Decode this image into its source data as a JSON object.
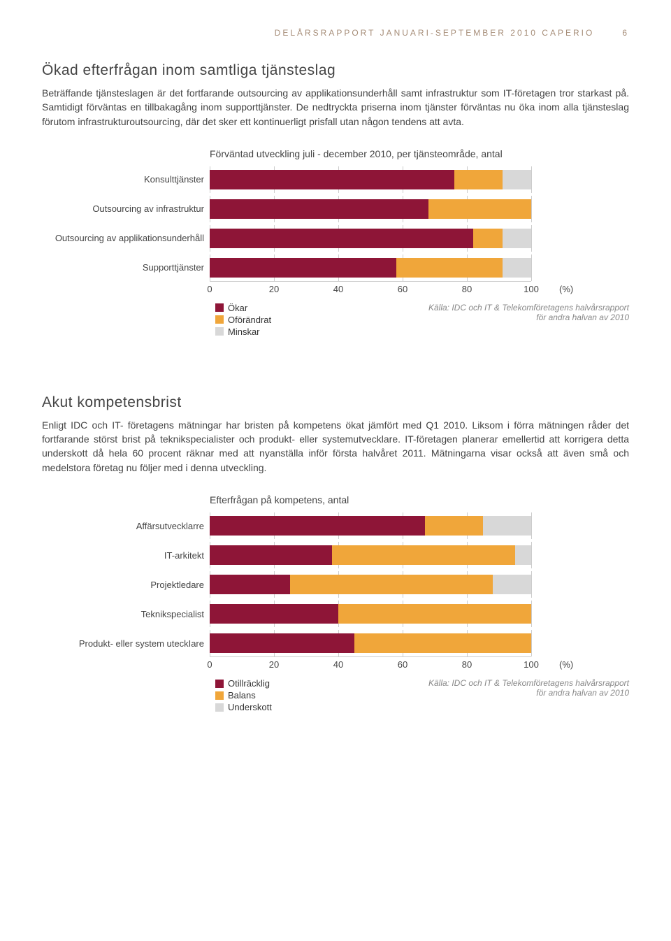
{
  "header": {
    "title": "DELÅRSRAPPORT JANUARI-SEPTEMBER 2010 CAPERIO",
    "page": "6"
  },
  "section1": {
    "title": "Ökad efterfrågan inom samtliga tjänsteslag",
    "body": "Beträffande tjänsteslagen är det fortfarande outsourcing av applikationsunderhåll samt infrastruktur som IT-företagen tror starkast på. Samtidigt förväntas en tillbakagång inom supporttjänster. De nedtryckta priserna inom tjänster förväntas nu öka inom alla tjänsteslag förutom infrastrukturoutsourcing, där det sker ett kontinuerligt prisfall utan någon tendens att avta."
  },
  "chart1": {
    "type": "stacked-bar",
    "title": "Förväntad utveckling juli - december 2010, per tjänsteområde, antal",
    "colors": {
      "okar": "#8e1537",
      "oforandrat": "#f0a63a",
      "minskar": "#d8d8d8",
      "grid": "#cccccc"
    },
    "series_labels": {
      "okar": "Ökar",
      "oforandrat": "Oförändrat",
      "minskar": "Minskar"
    },
    "xlim": [
      0,
      100
    ],
    "ticks": [
      0,
      20,
      40,
      60,
      80,
      100
    ],
    "unit": "(%)",
    "rows": [
      {
        "label": "Konsulttjänster",
        "okar": 76,
        "oforandrat": 15,
        "minskar": 9
      },
      {
        "label": "Outsourcing av infrastruktur",
        "okar": 68,
        "oforandrat": 32,
        "minskar": 0
      },
      {
        "label": "Outsourcing av applikationsunderhåll",
        "okar": 82,
        "oforandrat": 9,
        "minskar": 9
      },
      {
        "label": "Supporttjänster",
        "okar": 58,
        "oforandrat": 33,
        "minskar": 9
      }
    ],
    "source": "Källa: IDC och IT & Telekomföretagens halvårsrapport för andra halvan av 2010"
  },
  "section2": {
    "title": "Akut kompetensbrist",
    "body": "Enligt IDC och IT- företagens mätningar har bristen på kompetens ökat jämfört med Q1 2010. Liksom i förra mätningen råder det fortfarande störst brist på teknikspecialister och produkt- eller systemutvecklare. IT-företagen planerar emellertid att korrigera detta underskott då hela 60 procent räknar med att nyanställa inför första halvåret 2011. Mätningarna visar också att även små och medelstora företag nu följer med i denna utveckling."
  },
  "chart2": {
    "type": "stacked-bar",
    "title": "Efterfrågan på kompetens, antal",
    "colors": {
      "otillr": "#8e1537",
      "balans": "#f0a63a",
      "under": "#d8d8d8",
      "grid": "#cccccc"
    },
    "series_labels": {
      "otillr": "Otillräcklig",
      "balans": "Balans",
      "under": "Underskott"
    },
    "xlim": [
      0,
      100
    ],
    "ticks": [
      0,
      20,
      40,
      60,
      80,
      100
    ],
    "unit": "(%)",
    "rows": [
      {
        "label": "Affärsutvecklarre",
        "otillr": 67,
        "balans": 18,
        "under": 15
      },
      {
        "label": "IT-arkitekt",
        "otillr": 38,
        "balans": 57,
        "under": 5
      },
      {
        "label": "Projektledare",
        "otillr": 25,
        "balans": 63,
        "under": 12
      },
      {
        "label": "Teknikspecialist",
        "otillr": 40,
        "balans": 60,
        "under": 0
      },
      {
        "label": "Produkt- eller system uteckIare",
        "otillr": 45,
        "balans": 55,
        "under": 0
      }
    ],
    "source": "Källa: IDC och IT & Telekomföretagens halvårsrapport för andra halvan av 2010"
  }
}
